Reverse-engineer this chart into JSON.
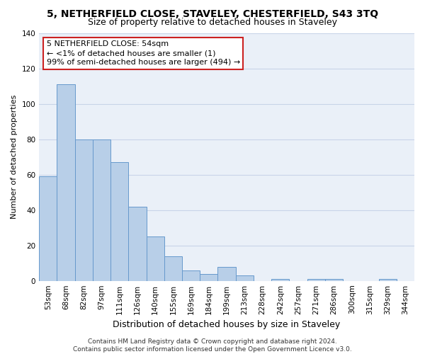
{
  "title": "5, NETHERFIELD CLOSE, STAVELEY, CHESTERFIELD, S43 3TQ",
  "subtitle": "Size of property relative to detached houses in Staveley",
  "xlabel": "Distribution of detached houses by size in Staveley",
  "ylabel": "Number of detached properties",
  "bar_labels": [
    "53sqm",
    "68sqm",
    "82sqm",
    "97sqm",
    "111sqm",
    "126sqm",
    "140sqm",
    "155sqm",
    "169sqm",
    "184sqm",
    "199sqm",
    "213sqm",
    "228sqm",
    "242sqm",
    "257sqm",
    "271sqm",
    "286sqm",
    "300sqm",
    "315sqm",
    "329sqm",
    "344sqm"
  ],
  "bar_values": [
    59,
    111,
    80,
    80,
    67,
    42,
    25,
    14,
    6,
    4,
    8,
    3,
    0,
    1,
    0,
    1,
    1,
    0,
    0,
    1,
    0
  ],
  "bar_color": "#b8cfe8",
  "bar_edge_color": "#6699cc",
  "annotation_text": "5 NETHERFIELD CLOSE: 54sqm\n← <1% of detached houses are smaller (1)\n99% of semi-detached houses are larger (494) →",
  "annotation_box_facecolor": "#ffffff",
  "annotation_box_edgecolor": "#cc2222",
  "ylim": [
    0,
    140
  ],
  "yticks": [
    0,
    20,
    40,
    60,
    80,
    100,
    120,
    140
  ],
  "grid_color": "#c8d4e8",
  "background_color": "#eaf0f8",
  "footer_line1": "Contains HM Land Registry data © Crown copyright and database right 2024.",
  "footer_line2": "Contains public sector information licensed under the Open Government Licence v3.0.",
  "title_fontsize": 10,
  "subtitle_fontsize": 9,
  "xlabel_fontsize": 9,
  "ylabel_fontsize": 8,
  "tick_fontsize": 7.5,
  "annotation_fontsize": 8,
  "footer_fontsize": 6.5
}
